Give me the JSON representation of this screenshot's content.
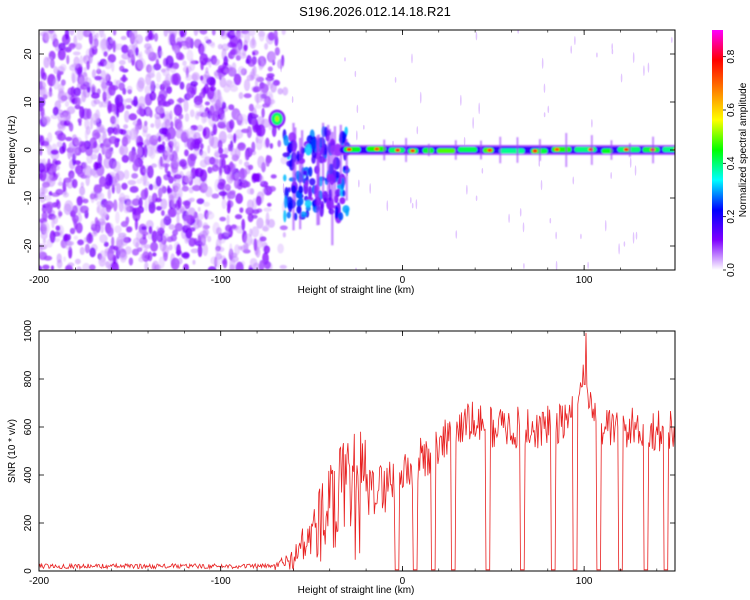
{
  "title": "S196.2026.012.14.18.R21",
  "chart_data": [
    {
      "type": "heatmap",
      "name": "spectrogram",
      "xlabel": "Height of straight line (km)",
      "ylabel": "Frequency (Hz)",
      "xlim": [
        -200,
        150
      ],
      "ylim": [
        -25,
        25
      ],
      "xticks": [
        -200,
        -100,
        0,
        100
      ],
      "yticks": [
        -20,
        -10,
        0,
        10,
        20
      ],
      "colorbar": {
        "label": "Normalized spectral amplitude",
        "ticks": [
          0.0,
          0.2,
          0.4,
          0.6,
          0.8
        ],
        "range": [
          0,
          0.9
        ],
        "colormap": [
          "#ffffff",
          "#7f00ff",
          "#0000ff",
          "#00ffff",
          "#00ff00",
          "#ffff00",
          "#ff8000",
          "#ff0000",
          "#ff00ff"
        ]
      },
      "noise_region_x": [
        -200,
        -72
      ],
      "signal_frequency_hz": 0,
      "onset_feature": {
        "x": [
          -72,
          -66
        ],
        "y": [
          5,
          8
        ]
      },
      "transition_region_x": [
        -65,
        -30
      ]
    },
    {
      "type": "line",
      "name": "snr",
      "xlabel": "Height of straight line (km)",
      "ylabel": "SNR (10 * v/v)",
      "xlim": [
        -200,
        150
      ],
      "ylim": [
        0,
        1000
      ],
      "xticks": [
        -200,
        -100,
        0,
        100
      ],
      "yticks": [
        0,
        200,
        400,
        600,
        800,
        1000
      ],
      "line_color": "#e82020",
      "series": [
        {
          "name": "SNR",
          "x": [
            -200,
            -150,
            -100,
            -70,
            -60,
            -50,
            -40,
            -30,
            -20,
            -10,
            0,
            10,
            20,
            30,
            40,
            50,
            60,
            70,
            80,
            90,
            95,
            100,
            105,
            110,
            120,
            130,
            140,
            150
          ],
          "values": [
            20,
            20,
            20,
            20,
            50,
            150,
            250,
            300,
            320,
            350,
            410,
            450,
            520,
            600,
            620,
            600,
            600,
            590,
            600,
            620,
            700,
            830,
            650,
            600,
            590,
            600,
            580,
            580
          ]
        }
      ],
      "dropout_centers_x": [
        -3,
        7,
        17,
        28,
        47,
        66,
        83,
        95,
        108,
        120,
        134,
        145
      ]
    }
  ]
}
